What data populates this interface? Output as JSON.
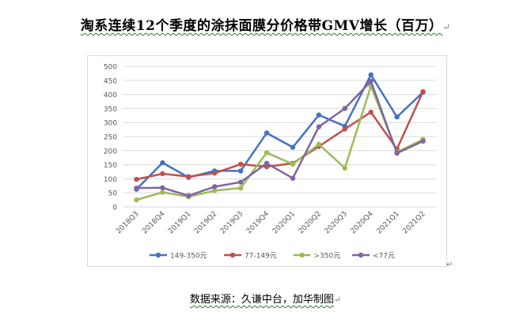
{
  "document": {
    "title": "淘系连续12个季度的涂抹面膜分价格带GMV增长（百万）",
    "source": "数据来源：久谦中台，加华制图",
    "para_mark": "↵"
  },
  "chart_data": {
    "type": "line",
    "categories": [
      "2018Q3",
      "2018Q4",
      "2019Q1",
      "2019Q2",
      "2019Q3",
      "2019Q4",
      "2020Q1",
      "2020Q2",
      "2020Q3",
      "2020Q4",
      "2021Q1",
      "2021Q2"
    ],
    "ylim": [
      0,
      500
    ],
    "yticks": [
      0,
      50,
      100,
      150,
      200,
      250,
      300,
      350,
      400,
      450,
      500
    ],
    "grid": true,
    "legend_position": "bottom",
    "series": [
      {
        "name": "149-350元",
        "color": "#4472C4",
        "values": [
          63,
          157,
          105,
          128,
          128,
          263,
          212,
          327,
          287,
          470,
          320,
          408
        ]
      },
      {
        "name": "77-149元",
        "color": "#C0504D",
        "values": [
          98,
          118,
          108,
          120,
          152,
          143,
          155,
          215,
          277,
          337,
          206,
          410
        ]
      },
      {
        "name": ">350元",
        "color": "#9BBB59",
        "values": [
          25,
          52,
          36,
          58,
          67,
          193,
          152,
          223,
          138,
          430,
          195,
          240
        ]
      },
      {
        "name": "<77元",
        "color": "#8064A2",
        "values": [
          67,
          68,
          40,
          72,
          88,
          155,
          102,
          285,
          350,
          447,
          191,
          234
        ]
      }
    ]
  }
}
